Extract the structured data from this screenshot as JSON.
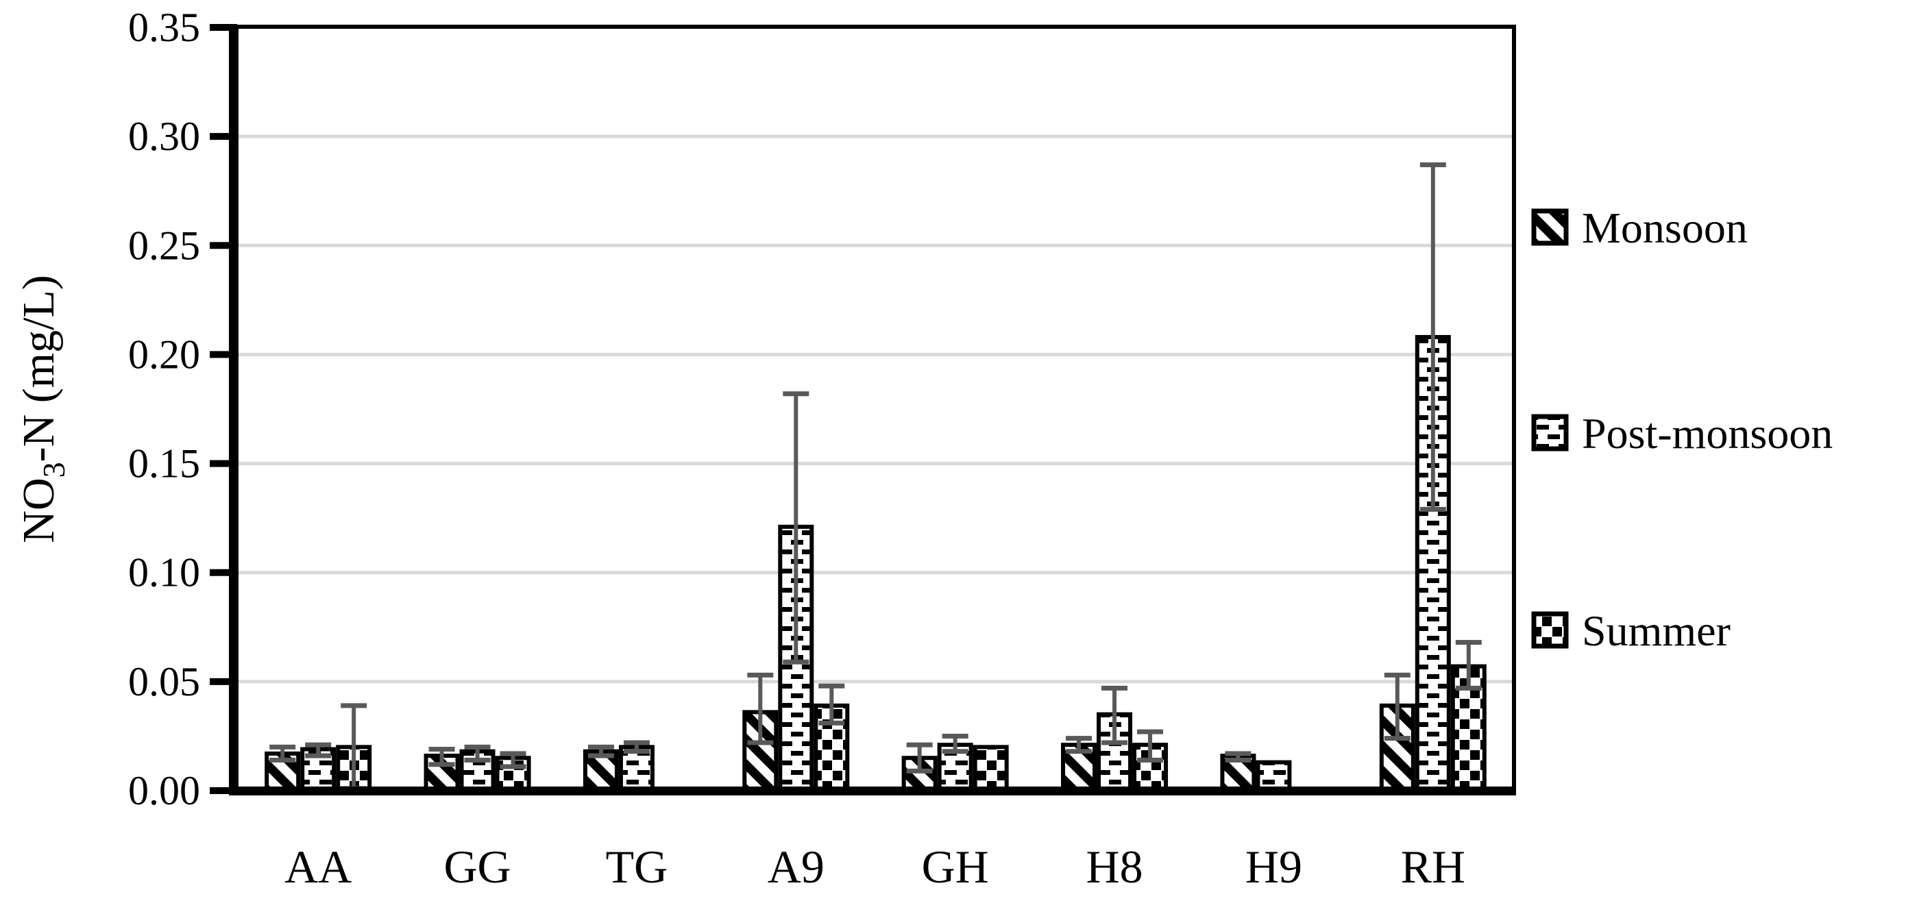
{
  "figure": {
    "y_axis_title": {
      "pre": "NO",
      "sub": "3",
      "post": "-N (mg/L)"
    },
    "legend": {
      "position": "right",
      "items": [
        {
          "label": "Monsoon",
          "pattern": "diagonal"
        },
        {
          "label": "Post-monsoon",
          "pattern": "dash"
        },
        {
          "label": "Summer",
          "pattern": "checker"
        }
      ]
    },
    "colors": {
      "background": "#ffffff",
      "bar_fill": "#ffffff",
      "bar_outline": "#000000",
      "pattern_ink": "#000000",
      "error_bar": "#595959",
      "gridline": "#d9d9d9",
      "axis": "#000000",
      "text": "#000000"
    }
  },
  "chart_data": {
    "type": "bar",
    "title": "",
    "xlabel": "",
    "ylabel": "NO3-N (mg/L)",
    "ylim": [
      0,
      0.35
    ],
    "y_tick_step": 0.05,
    "y_ticks": [
      "0.00",
      "0.05",
      "0.10",
      "0.15",
      "0.20",
      "0.25",
      "0.30",
      "0.35"
    ],
    "grid": "horizontal-light",
    "legend_position": "right-outside",
    "bar_style": "white fill with black pattern, black outline, gray error bars",
    "categories": [
      "AA",
      "GG",
      "TG",
      "A9",
      "GH",
      "H8",
      "H9",
      "RH"
    ],
    "series": [
      {
        "name": "Monsoon",
        "pattern": "diagonal",
        "values": [
          0.017,
          0.016,
          0.018,
          0.036,
          0.015,
          0.021,
          0.016,
          0.039
        ],
        "error_low": [
          0.014,
          0.012,
          0.016,
          0.022,
          0.009,
          0.018,
          0.014,
          0.024
        ],
        "error_high": [
          0.02,
          0.019,
          0.02,
          0.053,
          0.021,
          0.024,
          0.017,
          0.053
        ]
      },
      {
        "name": "Post-monsoon",
        "pattern": "dash",
        "values": [
          0.019,
          0.018,
          0.02,
          0.121,
          0.021,
          0.035,
          0.013,
          0.208
        ],
        "error_low": [
          0.016,
          0.014,
          0.018,
          0.059,
          0.018,
          0.022,
          null,
          0.129
        ],
        "error_high": [
          0.021,
          0.02,
          0.022,
          0.182,
          0.025,
          0.047,
          null,
          0.287
        ]
      },
      {
        "name": "Summer",
        "pattern": "checker",
        "values": [
          0.02,
          0.015,
          null,
          0.039,
          0.02,
          0.021,
          null,
          0.057
        ],
        "error_low": [
          0.001,
          0.011,
          null,
          0.031,
          null,
          0.014,
          null,
          0.047
        ],
        "error_high": [
          0.039,
          0.017,
          null,
          0.048,
          null,
          0.027,
          null,
          0.068
        ]
      }
    ]
  }
}
